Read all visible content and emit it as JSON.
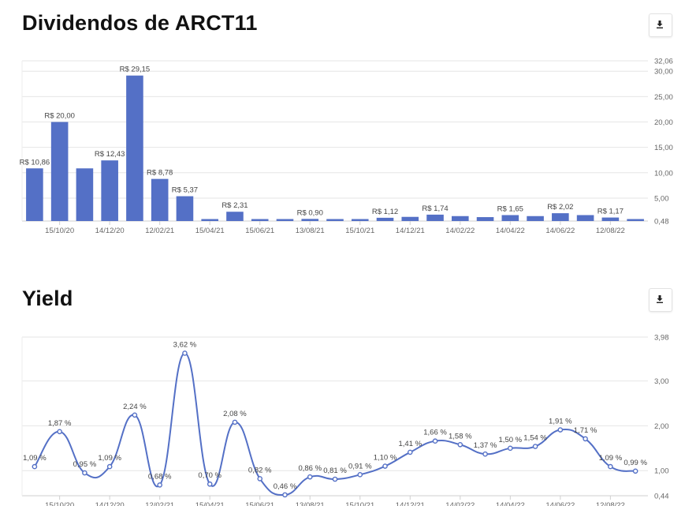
{
  "dividends": {
    "title": "Dividendos de ARCT11",
    "download_icon": "download-icon",
    "chart_data": {
      "type": "bar",
      "color": "#5470c6",
      "ylim": [
        0.48,
        32.06
      ],
      "yticks": [
        "32,06",
        "30,00",
        "25,00",
        "20,00",
        "15,00",
        "10,00",
        "5,00",
        "0,48"
      ],
      "xticks": [
        "15/10/20",
        "14/12/20",
        "12/02/21",
        "15/04/21",
        "15/06/21",
        "13/08/21",
        "15/10/21",
        "14/12/21",
        "14/02/22",
        "14/04/22",
        "14/06/22",
        "12/08/22"
      ],
      "values": [
        10.86,
        20.0,
        10.86,
        12.43,
        29.15,
        8.78,
        5.37,
        0.8,
        2.31,
        0.8,
        0.4,
        0.9,
        0.8,
        0.8,
        1.12,
        1.3,
        1.74,
        1.45,
        1.25,
        1.65,
        1.45,
        2.02,
        1.65,
        1.17,
        0.8
      ],
      "labels": [
        "R$ 10,86",
        "R$ 20,00",
        "",
        "R$ 12,43",
        "R$ 29,15",
        "R$ 8,78",
        "R$ 5,37",
        "",
        "R$ 2,31",
        "",
        "",
        "R$ 0,90",
        "",
        "",
        "R$ 1,12",
        "",
        "R$ 1,74",
        "",
        "",
        "R$ 1,65",
        "",
        "R$ 2,02",
        "",
        "R$ 1,17",
        ""
      ]
    }
  },
  "yield": {
    "title": "Yield",
    "download_icon": "download-icon",
    "chart_data": {
      "type": "line",
      "color": "#5470c6",
      "ylim": [
        0.44,
        3.98
      ],
      "yticks": [
        "3,98",
        "3,00",
        "2,00",
        "1,00",
        "0,44"
      ],
      "xticks": [
        "15/10/20",
        "14/12/20",
        "12/02/21",
        "15/04/21",
        "15/06/21",
        "13/08/21",
        "15/10/21",
        "14/12/21",
        "14/02/22",
        "14/04/22",
        "14/06/22",
        "12/08/22"
      ],
      "values": [
        1.09,
        1.87,
        0.95,
        1.09,
        2.24,
        0.68,
        3.62,
        0.7,
        2.08,
        0.82,
        0.46,
        0.86,
        0.81,
        0.91,
        1.1,
        1.41,
        1.66,
        1.58,
        1.37,
        1.5,
        1.54,
        1.91,
        1.71,
        1.09,
        0.99
      ],
      "labels": [
        "1,09 %",
        "1,87 %",
        "0,95 %",
        "1,09 %",
        "2,24 %",
        "0,68 %",
        "3,62 %",
        "0,70 %",
        "2,08 %",
        "0,82 %",
        "0,46 %",
        "0,86 %",
        "0,81 %",
        "0,91 %",
        "1,10 %",
        "1,41 %",
        "1,66 %",
        "1,58 %",
        "1,37 %",
        "1,50 %",
        "1,54 %",
        "1,91 %",
        "1,71 %",
        "1,09 %",
        "0,99 %"
      ]
    }
  }
}
